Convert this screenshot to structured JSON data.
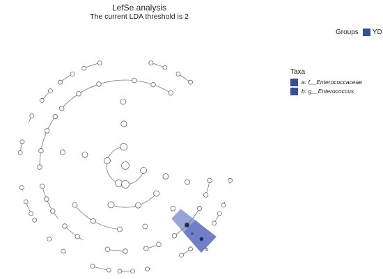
{
  "title": "LefSe analysis",
  "subtitle": "The current LDA threshold is 2",
  "legend_groups": {
    "title": "Groups",
    "items": [
      {
        "label": "YD",
        "color": "#3a4d9a"
      }
    ]
  },
  "legend_taxa": {
    "title": "Taxa",
    "items": [
      {
        "label": "a: f__Enterococcaceae",
        "color": "#3a4d9a"
      },
      {
        "label": "b: g__Enterococcus",
        "color": "#3a4d9a"
      }
    ]
  },
  "clade_labels": [
    "a",
    "b"
  ],
  "colors": {
    "highlight_outer": "#9aa5d6",
    "highlight_inner": "#7180c6",
    "edge": "#777777"
  }
}
